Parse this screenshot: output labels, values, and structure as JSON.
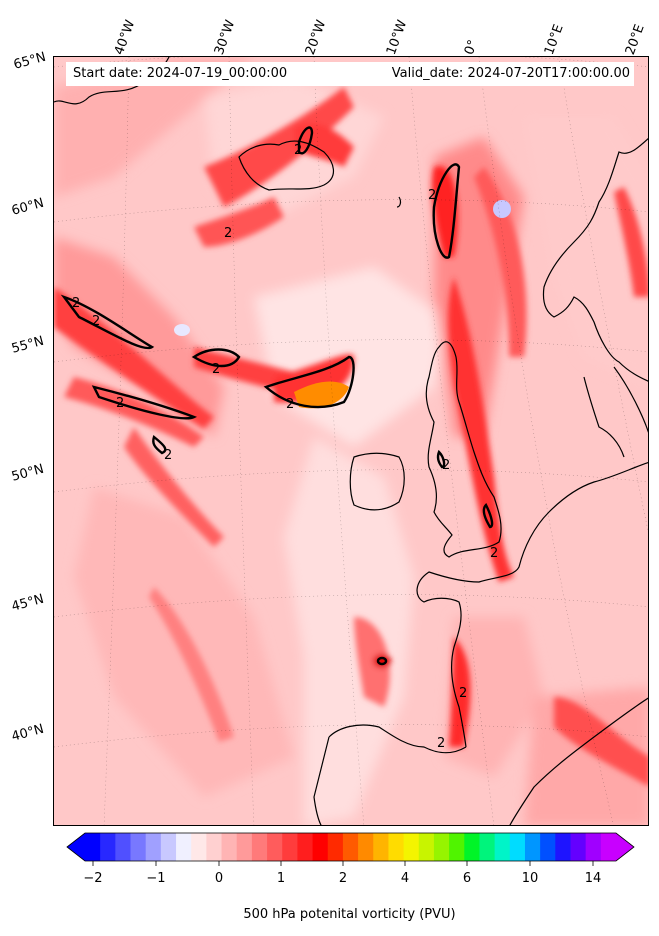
{
  "header": {
    "start_date": "Start date: 2024-07-19_00:00:00",
    "valid_date": "Valid_date: 2024-07-20T17:00:00.00"
  },
  "longitude_labels": [
    "40°W",
    "30°W",
    "20°W",
    "10°W",
    "0°",
    "10°E",
    "20°E"
  ],
  "latitude_labels": [
    "65°N",
    "60°N",
    "55°N",
    "50°N",
    "45°N",
    "40°N"
  ],
  "contour_labels": [
    "2",
    "2",
    "2",
    "2",
    "2",
    "2",
    "2",
    "2",
    "2",
    "2",
    "2",
    "2",
    "2"
  ],
  "colorbar": {
    "ticks": [
      "−2",
      "−1",
      "0",
      "1",
      "2",
      "4",
      "6",
      "10",
      "14"
    ],
    "label": "500 hPa potenital vorticity (PVU)",
    "colors": [
      "#0000ff",
      "#2828ff",
      "#5050ff",
      "#7878ff",
      "#a0a0ff",
      "#c8c8ff",
      "#f0f0ff",
      "#ffe8e8",
      "#ffd0d0",
      "#ffb4b4",
      "#ff9a9a",
      "#ff7a7a",
      "#ff5c5c",
      "#ff3c3c",
      "#ff1e1e",
      "#ff0000",
      "#ff2a00",
      "#ff5a00",
      "#ff8a00",
      "#ffb400",
      "#ffdc00",
      "#f4f400",
      "#c8f400",
      "#96f400",
      "#50f400",
      "#00f428",
      "#00f47c",
      "#00f4c8",
      "#00dcff",
      "#0096ff",
      "#0050ff",
      "#1e14ff",
      "#6400ff",
      "#a000ff",
      "#c800ff"
    ],
    "under_color": "#0000ff",
    "over_color": "#c800ff"
  }
}
